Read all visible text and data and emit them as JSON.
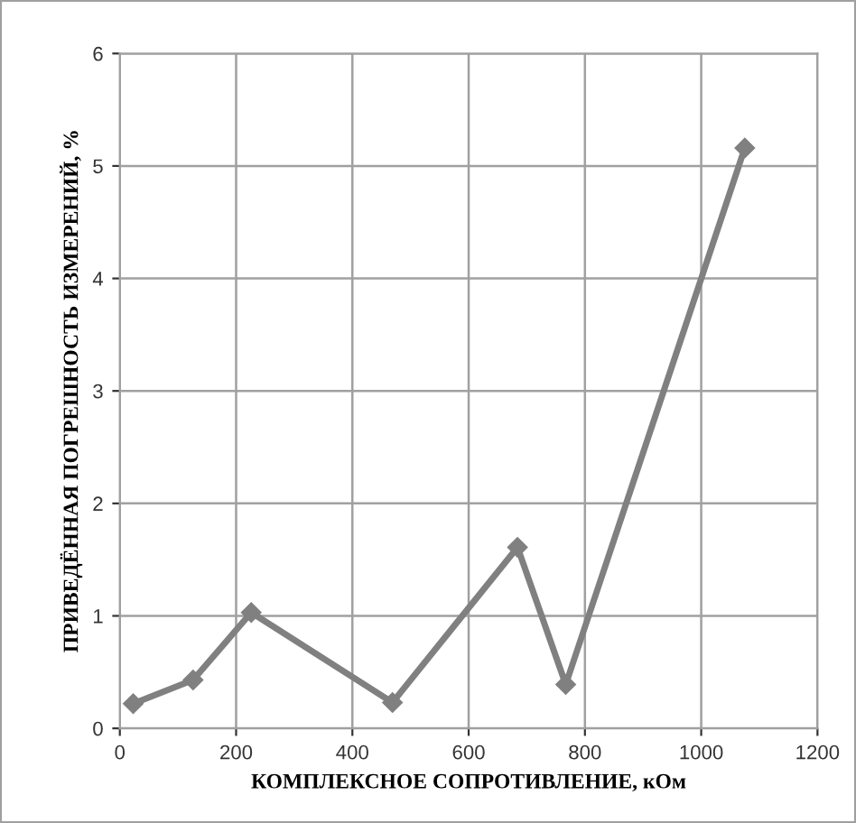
{
  "chart_data": {
    "type": "line",
    "xlabel": "КОМПЛЕКСНОЕ СОПРОТИВЛЕНИЕ, кОм",
    "ylabel": "ПРИВЕДЁННАЯ ПОГРЕШНОСТЬ ИЗМЕРЕНИЙ, %",
    "x": [
      23,
      126,
      226,
      469,
      684,
      767,
      1075
    ],
    "series": [
      {
        "color": "#808080",
        "values": [
          0.22,
          0.43,
          1.03,
          0.23,
          1.61,
          0.39,
          5.16
        ]
      }
    ],
    "xlim": [
      0,
      1200
    ],
    "xticks": [
      0,
      200,
      400,
      600,
      800,
      1000,
      1200
    ],
    "ylim": [
      0,
      6
    ],
    "yticks": [
      0,
      1,
      2,
      3,
      4,
      5,
      6
    ],
    "grid": true,
    "marker": "diamond",
    "line_style": "solid"
  }
}
